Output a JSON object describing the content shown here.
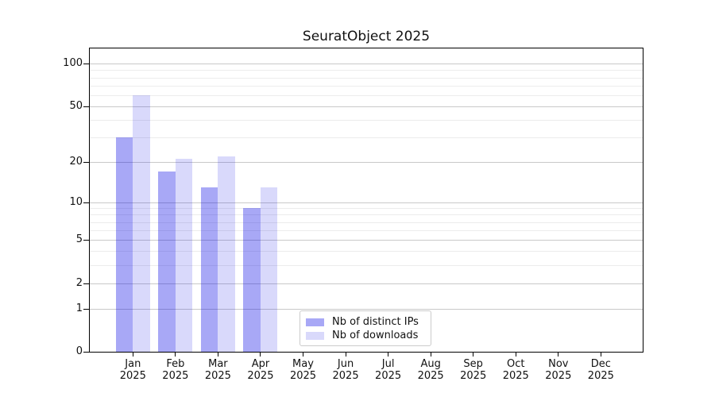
{
  "chart_data": {
    "type": "bar",
    "title": "SeuratObject 2025",
    "categories": [
      "Jan",
      "Feb",
      "Mar",
      "Apr",
      "May",
      "Jun",
      "Jul",
      "Aug",
      "Sep",
      "Oct",
      "Nov",
      "Dec"
    ],
    "category_year": "2025",
    "series": [
      {
        "name": "Nb of distinct IPs",
        "color": "#0000e6",
        "alpha": 0.34,
        "values": [
          30,
          17,
          13,
          9,
          0,
          0,
          0,
          0,
          0,
          0,
          0,
          0
        ]
      },
      {
        "name": "Nb of downloads",
        "color": "#0000e6",
        "alpha": 0.15,
        "values": [
          60,
          21,
          22,
          13,
          0,
          0,
          0,
          0,
          0,
          0,
          0,
          0
        ]
      }
    ],
    "y_axis": {
      "scale": "log1p",
      "ticks": [
        0,
        1,
        2,
        5,
        10,
        20,
        50,
        100
      ],
      "minor_gridlines": [
        3,
        4,
        6,
        7,
        8,
        9,
        30,
        40,
        60,
        70,
        80,
        90
      ],
      "range_top": 130
    },
    "grid": true,
    "legend_position": "inside-bottom-center"
  },
  "colors": {
    "background": "#ffffff",
    "axis": "#000000",
    "major_grid": "#c9c9c9",
    "minor_grid": "#ececec",
    "legend_border": "#cbcbcb",
    "text": "#111111"
  }
}
